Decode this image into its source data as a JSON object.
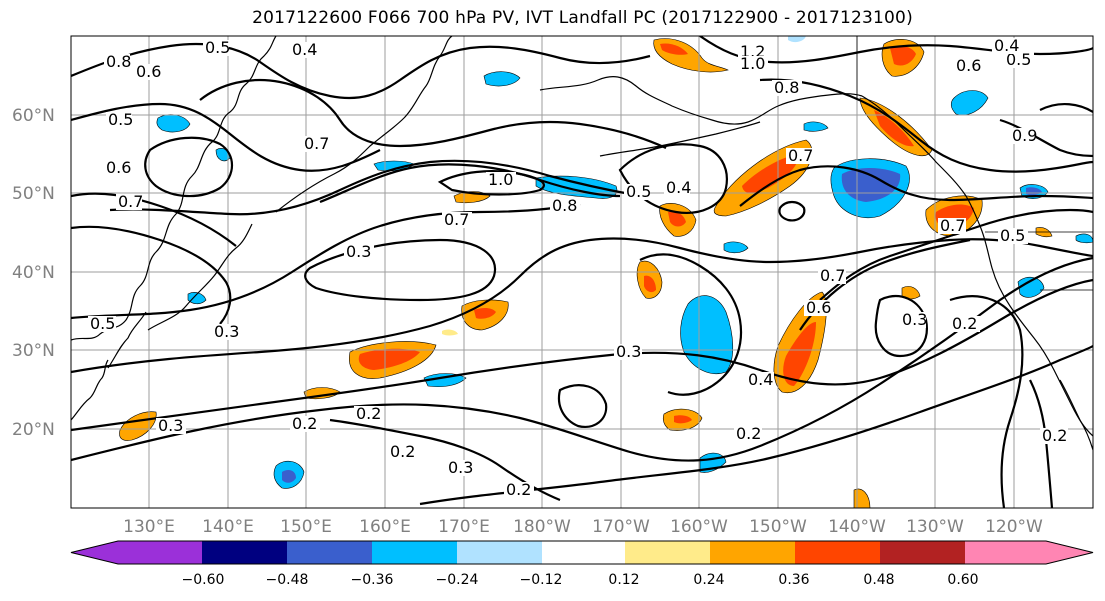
{
  "title": "2017122600 F066 700 hPa PV, IVT Landfall PC (2017122900 - 2017123100)",
  "lat_labels": [
    "60°N",
    "50°N",
    "40°N",
    "30°N",
    "20°N"
  ],
  "lon_labels": [
    "130°E",
    "140°E",
    "150°E",
    "160°E",
    "170°E",
    "180°W",
    "170°W",
    "160°W",
    "150°W",
    "140°W",
    "130°W",
    "120°W"
  ],
  "colorbar": {
    "colors": [
      "#9b30d9",
      "#000080",
      "#3a5fcd",
      "#00bfff",
      "#b0e2ff",
      "#ffffff",
      "#ffffff",
      "#ffeb8a",
      "#ffa500",
      "#ff4500",
      "#b22222",
      "#ff85b3"
    ],
    "tick_labels": [
      "−0.60",
      "−0.48",
      "−0.36",
      "−0.24",
      "−0.12",
      "0.12",
      "0.24",
      "0.36",
      "0.48",
      "0.60"
    ]
  },
  "contour_labels": [
    "0.8",
    "0.5",
    "0.4",
    "0.6",
    "0.7",
    "0.5",
    "1.2",
    "1.0",
    "0.5",
    "0.4",
    "0.6",
    "1.0",
    "0.8",
    "0.7",
    "0.3",
    "0.7",
    "0.5",
    "0.4",
    "0.7",
    "0.5",
    "0.3",
    "0.3",
    "0.3",
    "0.2",
    "0.2",
    "0.2",
    "0.3",
    "0.2",
    "0.4",
    "0.6",
    "0.7",
    "0.3",
    "0.2",
    "0.2",
    "0.2",
    "0.5",
    "0.6",
    "0.7",
    "0.8",
    "0.9"
  ]
}
